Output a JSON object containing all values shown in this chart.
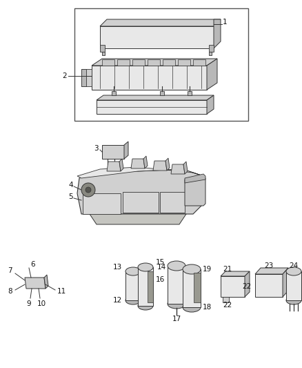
{
  "background_color": "#ffffff",
  "fig_width": 4.38,
  "fig_height": 5.33,
  "dpi": 100,
  "line_color": "#333333",
  "text_color": "#111111",
  "fill_light": "#e8e8e8",
  "fill_mid": "#d0d0d0",
  "fill_dark": "#b8b8b8",
  "font_size": 7.5,
  "lw": 0.7
}
